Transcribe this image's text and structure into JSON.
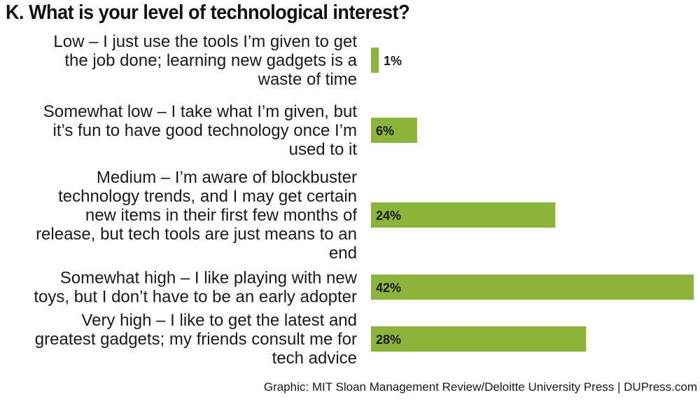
{
  "chart_data": {
    "type": "bar",
    "orientation": "horizontal",
    "title": "K. What is your level of technological interest?",
    "categories": [
      "Low – I just use the tools I’m given to get the job done; learning new gadgets is a waste of time",
      "Somewhat low – I take what I’m given, but it’s fun to have good technology once I’m used to it",
      "Medium – I’m aware of blockbuster technology trends, and I may get certain new items in their first few months of release, but tech tools are just means to an end",
      "Somewhat high – I like playing with new toys, but I don’t have to be an early adopter",
      "Very high – I like to get the latest and greatest gadgets; my friends consult me for tech advice"
    ],
    "category_lines": [
      [
        "Low – I just use the tools I’m given to get",
        "the job done; learning new gadgets is a",
        "waste of time"
      ],
      [
        "Somewhat low – I take what I’m given, but",
        "it’s fun to have good technology once I’m",
        "used to it"
      ],
      [
        "Medium – I’m aware of blockbuster",
        "technology trends, and I may get certain",
        "new items in their first few months of",
        "release, but tech tools are just means to an",
        "end"
      ],
      [
        "Somewhat high – I like playing with new",
        "toys, but I don’t have to be an early adopter"
      ],
      [
        "Very high – I like to get the latest and",
        "greatest gadgets; my friends consult me for",
        "tech advice"
      ]
    ],
    "values": [
      1,
      6,
      24,
      42,
      28
    ],
    "value_labels": [
      "1%",
      "6%",
      "24%",
      "42%",
      "28%"
    ],
    "xlim": [
      0,
      42
    ],
    "grid": false,
    "legend": "none",
    "bar_color": "#8db43a"
  },
  "source": "Graphic: MIT Sloan Management Review/Deloitte University Press  |  DUPress.com"
}
